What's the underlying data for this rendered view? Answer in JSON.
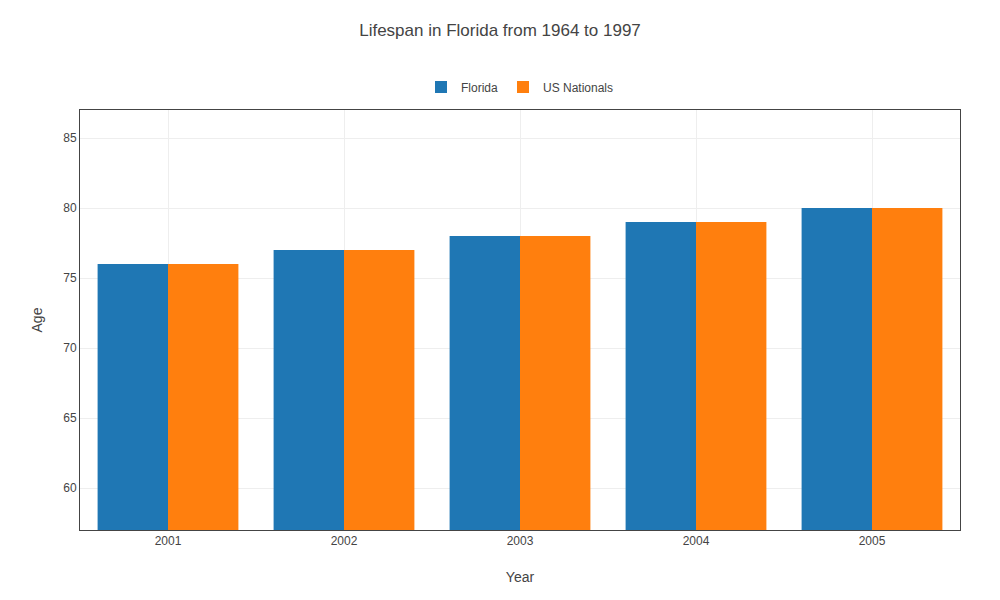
{
  "chart_data": {
    "type": "bar",
    "title": "Lifespan in Florida from 1964 to 1997",
    "xlabel": "Year",
    "ylabel": "Age",
    "categories": [
      "2001",
      "2002",
      "2003",
      "2004",
      "2005"
    ],
    "series": [
      {
        "name": "Florida",
        "values": [
          76.0,
          77.0,
          78.0,
          79.0,
          80.0
        ]
      },
      {
        "name": "US Nationals",
        "values": [
          76.0,
          77.0,
          78.0,
          79.0,
          80.0
        ]
      }
    ],
    "ylim": [
      57,
      87
    ],
    "yticks": [
      60,
      65,
      70,
      75,
      80,
      85
    ],
    "grid": true,
    "legend": "top"
  }
}
